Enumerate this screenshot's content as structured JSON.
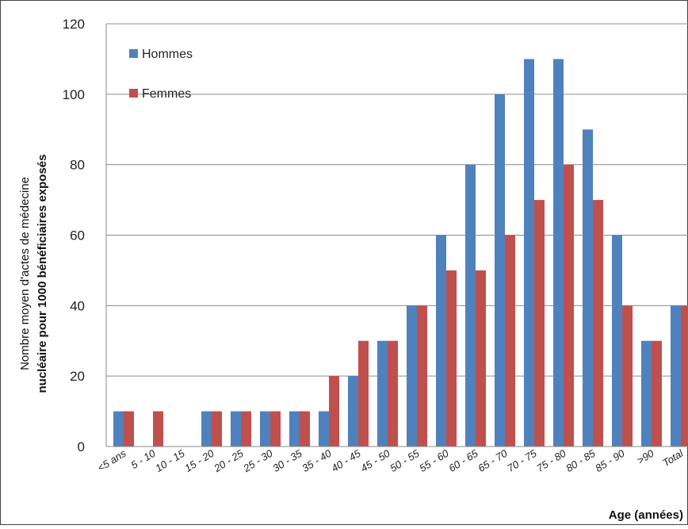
{
  "chart_data": {
    "type": "bar",
    "categories": [
      "<5 ans",
      "5 - 10",
      "10 - 15",
      "15 - 20",
      "20 - 25",
      "25 - 30",
      "30 - 35",
      "35 - 40",
      "40 - 45",
      "45 - 50",
      "50 - 55",
      "55 - 60",
      "60 - 65",
      "65 - 70",
      "70 - 75",
      "75 - 80",
      "80 - 85",
      "85 - 90",
      ">90",
      "Total"
    ],
    "series": [
      {
        "name": "Hommes",
        "color": "#4f81bd",
        "values": [
          10,
          0,
          0,
          10,
          10,
          10,
          10,
          10,
          20,
          30,
          40,
          60,
          80,
          100,
          110,
          110,
          90,
          60,
          30,
          40
        ]
      },
      {
        "name": "Femmes",
        "color": "#c0504d",
        "values": [
          10,
          10,
          0,
          10,
          10,
          10,
          10,
          20,
          30,
          30,
          40,
          50,
          50,
          60,
          70,
          80,
          70,
          40,
          30,
          40
        ]
      }
    ],
    "ylim": [
      0,
      120
    ],
    "yticks": [
      0,
      20,
      40,
      60,
      80,
      100,
      120
    ],
    "ylabel_line1": "Nombre moyen d'actes de médecine",
    "ylabel_line2": "nucléaire pour 1000 bénéficiaires exposés",
    "xlabel": "Age (années)",
    "grid": true,
    "legend_position": "top-left"
  }
}
